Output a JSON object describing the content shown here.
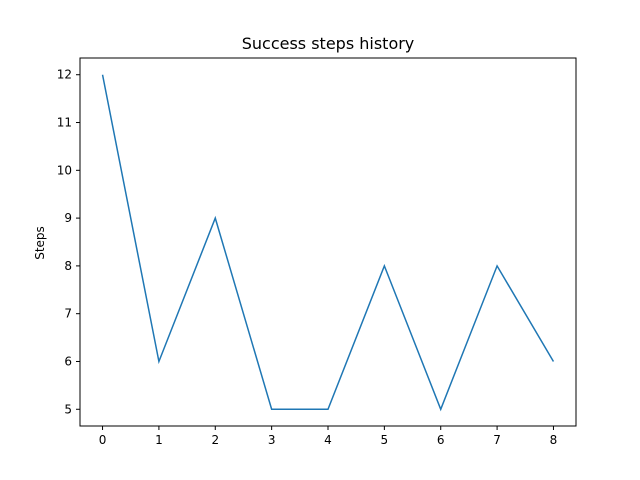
{
  "chart_data": {
    "type": "line",
    "title": "Success steps history",
    "xlabel": "",
    "ylabel": "Steps",
    "x": [
      0,
      1,
      2,
      3,
      4,
      5,
      6,
      7,
      8
    ],
    "series": [
      {
        "values": [
          12,
          6,
          9,
          5,
          5,
          8,
          5,
          8,
          6
        ],
        "color": "#1f77b4"
      }
    ],
    "xticks": [
      "0",
      "1",
      "2",
      "3",
      "4",
      "5",
      "6",
      "7",
      "8"
    ],
    "yticks": [
      "5",
      "6",
      "7",
      "8",
      "9",
      "10",
      "11",
      "12"
    ],
    "xlim": [
      -0.4,
      8.4
    ],
    "ylim": [
      4.65,
      12.35
    ],
    "grid": false,
    "legend": "none"
  }
}
